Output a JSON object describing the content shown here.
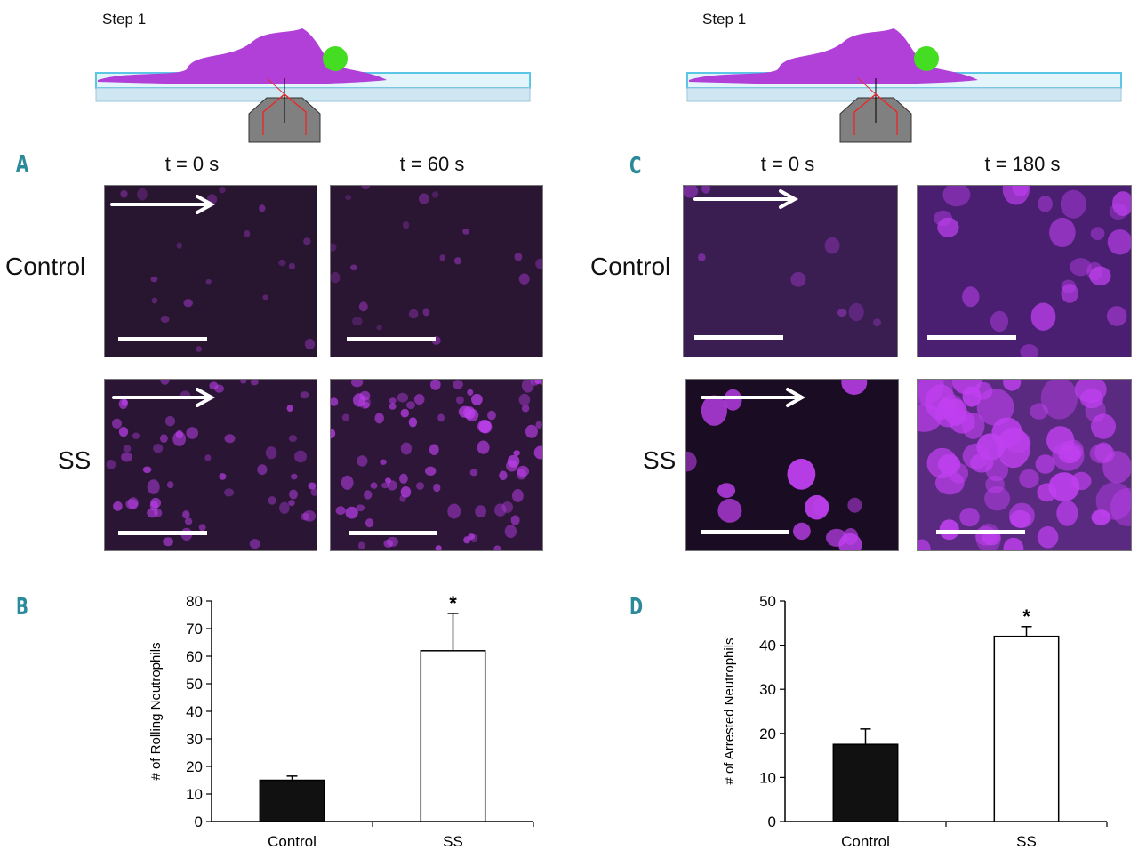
{
  "schematic": {
    "step_label": "Step 1"
  },
  "panel_A": {
    "letter": "A",
    "times": [
      "t = 0 s",
      "t = 60 s"
    ],
    "rows": [
      "Control",
      "SS"
    ]
  },
  "panel_C": {
    "letter": "C",
    "times": [
      "t = 0 s",
      "t = 180 s"
    ],
    "rows": [
      "Control",
      "SS"
    ]
  },
  "panel_B_letter": "B",
  "panel_D_letter": "D",
  "colors": {
    "cell_magenta": "#b040d8",
    "bead_green": "#44dd22",
    "teal_letter": "#2a8a9a",
    "bar_control": "#111111",
    "bar_ss": "#ffffff"
  },
  "chart_data": [
    {
      "type": "bar",
      "panel": "B",
      "categories": [
        "Control",
        "SS"
      ],
      "values": [
        15,
        62
      ],
      "errors": [
        1.5,
        13.5
      ],
      "significance": [
        "",
        "*"
      ],
      "ylabel": "# of Rolling Neutrophils",
      "ylim": [
        0,
        80
      ],
      "yticks": [
        0,
        10,
        20,
        30,
        40,
        50,
        60,
        70,
        80
      ]
    },
    {
      "type": "bar",
      "panel": "D",
      "categories": [
        "Control",
        "SS"
      ],
      "values": [
        17.5,
        42
      ],
      "errors": [
        3.5,
        2.2
      ],
      "significance": [
        "",
        "*"
      ],
      "ylabel": "# of Arrested Neutrophils",
      "ylim": [
        0,
        50
      ],
      "yticks": [
        0,
        10,
        20,
        30,
        40,
        50
      ]
    }
  ]
}
